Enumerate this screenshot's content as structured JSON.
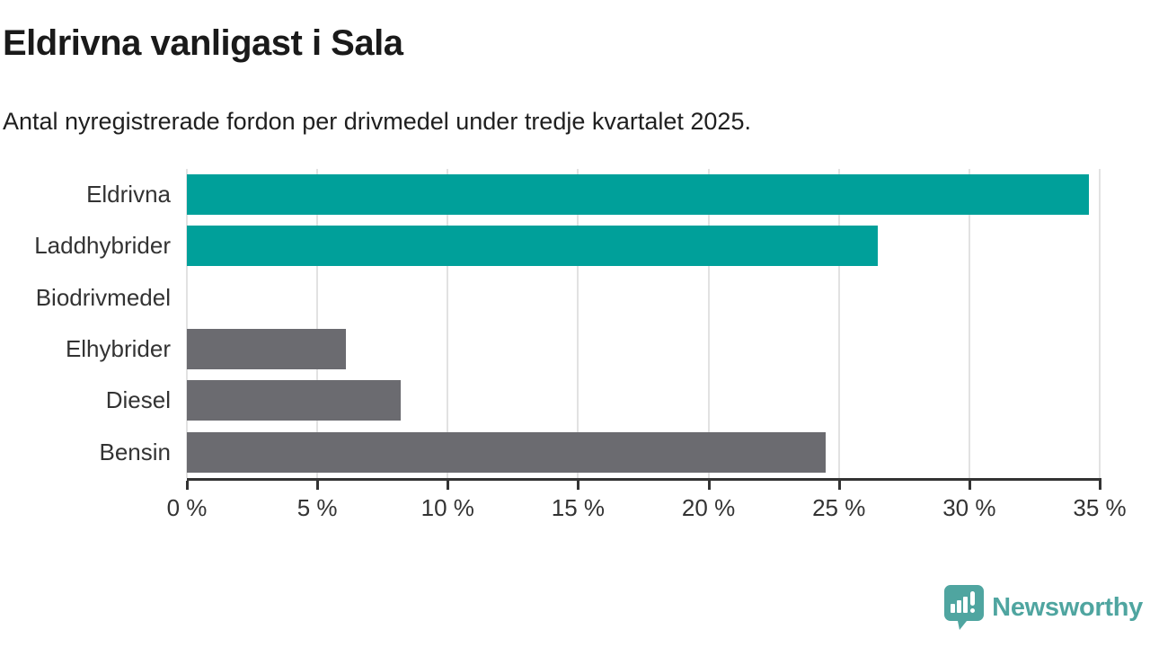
{
  "header": {
    "title": "Eldrivna vanligast i Sala",
    "subtitle": "Antal nyregistrerade fordon per drivmedel under tredje kvartalet 2025."
  },
  "chart_data": {
    "type": "bar",
    "orientation": "horizontal",
    "title": "Eldrivna vanligast i Sala",
    "subtitle": "Antal nyregistrerade fordon per drivmedel under tredje kvartalet 2025.",
    "categories": [
      "Eldrivna",
      "Laddhybrider",
      "Biodrivmedel",
      "Elhybrider",
      "Diesel",
      "Bensin"
    ],
    "values": [
      34.6,
      26.5,
      0,
      6.1,
      8.2,
      24.5
    ],
    "unit": "%",
    "xlim": [
      0,
      35
    ],
    "x_ticks": [
      0,
      5,
      10,
      15,
      20,
      25,
      30,
      35
    ],
    "x_tick_labels": [
      "0 %",
      "5 %",
      "10 %",
      "15 %",
      "20 %",
      "25 %",
      "30 %",
      "35 %"
    ],
    "grid": "vertical-on",
    "legend": "none",
    "bar_colors": [
      "#00a09a",
      "#00a09a",
      "#6b6b70",
      "#6b6b70",
      "#6b6b70",
      "#6b6b70"
    ],
    "highlight_color": "#00a09a",
    "default_color": "#6b6b70"
  },
  "footer": {
    "brand": "Newsworthy",
    "brand_color": "#4fa5a0",
    "logo_icon": "bar-chart-speech-bubble-icon"
  },
  "colors": {
    "background": "#ffffff",
    "title_text": "#1a1a1a",
    "axis_text": "#333333",
    "axis_line": "#333333",
    "gridline": "#e2e2e2"
  }
}
